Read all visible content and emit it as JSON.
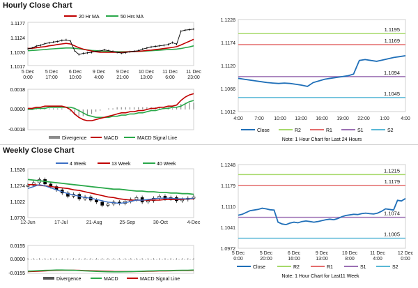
{
  "titles": {
    "hourly": "Hourly Close Chart",
    "weekly": "Weekly Close Chart"
  },
  "colors": {
    "ma20": "#c00000",
    "ma50": "#2aa84a",
    "ma4": "#3b6fc4",
    "close": "#1f6fb8",
    "r2": "#a6d96a",
    "r1": "#e46c6c",
    "s1": "#9b6fb3",
    "s2": "#59b8d6",
    "divergence": "#8c8c8c",
    "macd": "#c00000",
    "signal": "#2aa84a",
    "price": "#000000"
  },
  "hourly_legend": {
    "ma20": "20 Hr MA",
    "ma50": "50 Hrs MA"
  },
  "weekly_legend": {
    "ma4": "4 Week",
    "ma13": "13 Week",
    "ma40": "40 Week"
  },
  "macd_legend": {
    "divergence": "Divergence",
    "macd": "MACD",
    "signal": "MACD Signal Line"
  },
  "macd_legend_weekly": {
    "divergence": "Divergence",
    "macd": "MACD",
    "signal": "MACD Signal Line"
  },
  "pivot_legend": {
    "close": "Close",
    "r2": "R2",
    "r1": "R1",
    "s1": "S1",
    "s2": "S2"
  },
  "notes": {
    "hourly": "Note: 1 Hour Chart for Last 24 Hours",
    "weekly": "Note: 1 Hour Chart for Last11 Week"
  },
  "chart_data": [
    {
      "id": "hourly_price",
      "type": "line",
      "title": "Hourly Close Chart",
      "y_ticks": [
        "1.1177",
        "1.1124",
        "1.1070",
        "1.1017"
      ],
      "ylim": [
        1.1017,
        1.1177
      ],
      "x_ticks": [
        "5 Dec\n0:00",
        "5 Dec\n17:00",
        "6 Dec\n10:00",
        "9 Dec\n4:00",
        "9 Dec\n21:00",
        "10 Dec\n13:00",
        "11 Dec\n6:00",
        "11 Dec\n23:00"
      ],
      "series": [
        {
          "name": "Price",
          "values": [
            1.1079,
            1.1082,
            1.1089,
            1.1092,
            1.1098,
            1.1101,
            1.1104,
            1.1106,
            1.111,
            1.1112,
            1.1108,
            1.1072,
            1.1058,
            1.1062,
            1.1064,
            1.1066,
            1.107,
            1.1071,
            1.1075,
            1.1072,
            1.1069,
            1.1066,
            1.1063,
            1.1065,
            1.1068,
            1.107,
            1.1072,
            1.1078,
            1.1082,
            1.1086,
            1.1088,
            1.109,
            1.1092,
            1.1095,
            1.1102,
            1.1096,
            1.1144,
            1.1148,
            1.115,
            1.1152
          ]
        },
        {
          "name": "20 Hr MA",
          "values": [
            1.108,
            1.1081,
            1.1083,
            1.1085,
            1.1087,
            1.109,
            1.1092,
            1.1095,
            1.1097,
            1.1099,
            1.1097,
            1.109,
            1.1083,
            1.1078,
            1.1074,
            1.1071,
            1.1068,
            1.1066,
            1.1066,
            1.1066,
            1.1066,
            1.1066,
            1.1066,
            1.1067,
            1.1068,
            1.1069,
            1.107,
            1.1071,
            1.1073,
            1.1074,
            1.1076,
            1.1078,
            1.108,
            1.1082,
            1.1084,
            1.1087,
            1.1093,
            1.11,
            1.1107,
            1.1114
          ]
        },
        {
          "name": "50 Hrs MA",
          "values": [
            1.1072,
            1.1073,
            1.1074,
            1.1075,
            1.1076,
            1.1078,
            1.1079,
            1.108,
            1.1081,
            1.1082,
            1.1082,
            1.1081,
            1.1079,
            1.1077,
            1.1075,
            1.1073,
            1.1072,
            1.1071,
            1.107,
            1.1069,
            1.1068,
            1.1068,
            1.1068,
            1.1068,
            1.1068,
            1.1069,
            1.1069,
            1.107,
            1.1071,
            1.1072,
            1.1073,
            1.1074,
            1.1075,
            1.1076,
            1.1077,
            1.1078,
            1.108,
            1.1083,
            1.1086,
            1.109
          ]
        }
      ]
    },
    {
      "id": "hourly_macd",
      "type": "line",
      "y_ticks": [
        "0.0018",
        "0.0000",
        "-0.0018"
      ],
      "ylim": [
        -0.0018,
        0.0018
      ],
      "series": [
        {
          "name": "MACD",
          "values": [
            0.0001,
            0.0001,
            0.0002,
            0.0002,
            0.0003,
            0.0003,
            0.0003,
            0.0003,
            0.0003,
            0.0002,
            0.0,
            -0.0004,
            -0.0007,
            -0.0009,
            -0.001,
            -0.001,
            -0.0009,
            -0.0008,
            -0.0007,
            -0.0006,
            -0.0005,
            -0.0004,
            -0.0003,
            -0.0003,
            -0.0002,
            -0.0002,
            -0.0001,
            -0.0001,
            0.0,
            0.0001,
            0.0001,
            0.0002,
            0.0002,
            0.0003,
            0.0003,
            0.0004,
            0.0008,
            0.0011,
            0.0013,
            0.0014
          ]
        },
        {
          "name": "MACD Signal Line",
          "values": [
            0.0,
            0.0,
            0.0001,
            0.0001,
            0.0001,
            0.0002,
            0.0002,
            0.0002,
            0.0002,
            0.0002,
            0.0002,
            0.0001,
            -0.0001,
            -0.0003,
            -0.0005,
            -0.0006,
            -0.0007,
            -0.0007,
            -0.0007,
            -0.0007,
            -0.0006,
            -0.0006,
            -0.0005,
            -0.0005,
            -0.0004,
            -0.0004,
            -0.0003,
            -0.0003,
            -0.0002,
            -0.0001,
            -0.0001,
            0.0,
            0.0001,
            0.0001,
            0.0002,
            0.0002,
            0.0003,
            0.0005,
            0.0007,
            0.0008
          ]
        }
      ]
    },
    {
      "id": "hourly_pivot",
      "type": "line",
      "y_ticks": [
        "1.1228",
        "1.1174",
        "1.1120",
        "1.1066",
        "1.1012"
      ],
      "ylim": [
        1.1012,
        1.1228
      ],
      "x_ticks": [
        "4:00",
        "7:00",
        "10:00",
        "13:00",
        "16:00",
        "19:00",
        "22:00",
        "1:00",
        "4:00"
      ],
      "levels": {
        "R2": 1.1195,
        "R1": 1.1169,
        "S1": 1.1094,
        "S2": 1.1045
      },
      "level_labels": {
        "R2": "1.1195",
        "R1": "1.1169",
        "S1": "1.1094",
        "S2": "1.1045"
      },
      "close": [
        1.109,
        1.1088,
        1.1086,
        1.1084,
        1.1082,
        1.108,
        1.1079,
        1.1078,
        1.1079,
        1.1078,
        1.1076,
        1.1074,
        1.1071,
        1.108,
        1.1084,
        1.1088,
        1.109,
        1.1092,
        1.1094,
        1.1096,
        1.11,
        1.1132,
        1.1134,
        1.1132,
        1.113,
        1.1133,
        1.1136,
        1.1139,
        1.1141,
        1.1143
      ]
    },
    {
      "id": "weekly_price",
      "type": "line",
      "title": "Weekly Close Chart",
      "y_ticks": [
        "1.1526",
        "1.1274",
        "1.1022",
        "1.0770"
      ],
      "ylim": [
        1.077,
        1.1526
      ],
      "x_ticks": [
        "12-Jun",
        "17-Jul",
        "21-Aug",
        "25-Sep",
        "30-Oct",
        "4-Dec"
      ],
      "series": [
        {
          "name": "Price",
          "values": [
            1.127,
            1.131,
            1.136,
            1.129,
            1.125,
            1.12,
            1.115,
            1.11,
            1.113,
            1.106,
            1.109,
            1.104,
            1.101,
            1.096,
            1.098,
            1.101,
            1.099,
            1.102,
            1.105,
            1.108,
            1.101,
            1.103,
            1.107,
            1.11,
            1.106,
            1.108,
            1.103,
            1.105,
            1.107,
            1.109
          ]
        },
        {
          "name": "4 Week",
          "values": [
            1.122,
            1.125,
            1.128,
            1.126,
            1.123,
            1.12,
            1.117,
            1.114,
            1.112,
            1.11,
            1.108,
            1.107,
            1.105,
            1.103,
            1.101,
            1.1,
            1.099,
            1.1,
            1.102,
            1.104,
            1.104,
            1.105,
            1.106,
            1.107,
            1.107,
            1.107,
            1.106,
            1.106,
            1.106,
            1.107
          ]
        },
        {
          "name": "13 Week",
          "values": [
            1.128,
            1.128,
            1.127,
            1.126,
            1.125,
            1.124,
            1.123,
            1.122,
            1.12,
            1.119,
            1.117,
            1.115,
            1.113,
            1.111,
            1.109,
            1.108,
            1.106,
            1.105,
            1.104,
            1.104,
            1.104,
            1.104,
            1.104,
            1.104,
            1.105,
            1.105,
            1.105,
            1.105,
            1.106,
            1.106
          ]
        },
        {
          "name": "40 Week",
          "values": [
            1.136,
            1.135,
            1.134,
            1.133,
            1.132,
            1.131,
            1.13,
            1.129,
            1.128,
            1.127,
            1.126,
            1.125,
            1.124,
            1.123,
            1.122,
            1.121,
            1.121,
            1.12,
            1.119,
            1.118,
            1.118,
            1.117,
            1.117,
            1.116,
            1.116,
            1.115,
            1.115,
            1.114,
            1.114,
            1.113
          ]
        }
      ]
    },
    {
      "id": "weekly_macd",
      "type": "line",
      "y_ticks": [
        "0.0155",
        "0.0000",
        "-0.0155"
      ],
      "ylim": [
        -0.0155,
        0.0155
      ],
      "series": [
        {
          "name": "MACD",
          "values": [
            -0.013,
            -0.0128,
            -0.0125,
            -0.0122,
            -0.012,
            -0.0118,
            -0.0118,
            -0.0119,
            -0.0121,
            -0.0124,
            -0.0127,
            -0.013,
            -0.0133,
            -0.0135,
            -0.0137,
            -0.0138,
            -0.0138,
            -0.0137,
            -0.0135,
            -0.0133,
            -0.0131,
            -0.0129,
            -0.0127,
            -0.0125,
            -0.0124,
            -0.0123,
            -0.0122,
            -0.0121,
            -0.012,
            -0.0118
          ]
        },
        {
          "name": "MACD Signal Line",
          "values": [
            -0.0135,
            -0.0133,
            -0.013,
            -0.0127,
            -0.0124,
            -0.0122,
            -0.0121,
            -0.0121,
            -0.0121,
            -0.0122,
            -0.0124,
            -0.0126,
            -0.0128,
            -0.013,
            -0.0132,
            -0.0134,
            -0.0135,
            -0.0135,
            -0.0135,
            -0.0134,
            -0.0133,
            -0.0131,
            -0.013,
            -0.0128,
            -0.0127,
            -0.0126,
            -0.0125,
            -0.0124,
            -0.0123,
            -0.0122
          ]
        }
      ]
    },
    {
      "id": "weekly_pivot",
      "type": "line",
      "y_ticks": [
        "1.1248",
        "1.1179",
        "1.1110",
        "1.1041",
        "1.0972"
      ],
      "ylim": [
        1.0972,
        1.1248
      ],
      "x_ticks": [
        "5 Dec\n0:00",
        "5 Dec\n20:00",
        "6 Dec\n16:00",
        "9 Dec\n13:00",
        "10 Dec\n8:00",
        "11 Dec\n4:00",
        "12 Dec\n0:00"
      ],
      "levels": {
        "R2": 1.1215,
        "R1": 1.1179,
        "S1": 1.1074,
        "S2": 1.1005
      },
      "level_labels": {
        "R2": "1.1215",
        "R1": "1.1179",
        "S1": "1.1074",
        "S2": "1.1005"
      },
      "close": [
        1.1081,
        1.1084,
        1.109,
        1.1096,
        1.1098,
        1.11,
        1.1104,
        1.1102,
        1.1099,
        1.1098,
        1.1058,
        1.1052,
        1.105,
        1.1055,
        1.1058,
        1.1056,
        1.106,
        1.1062,
        1.106,
        1.1058,
        1.106,
        1.1063,
        1.1066,
        1.1068,
        1.1066,
        1.107,
        1.1076,
        1.108,
        1.1082,
        1.1084,
        1.1083,
        1.1086,
        1.1088,
        1.1086,
        1.1085,
        1.1088,
        1.1094,
        1.1102,
        1.11,
        1.1098,
        1.113,
        1.1128,
        1.1136
      ]
    }
  ]
}
